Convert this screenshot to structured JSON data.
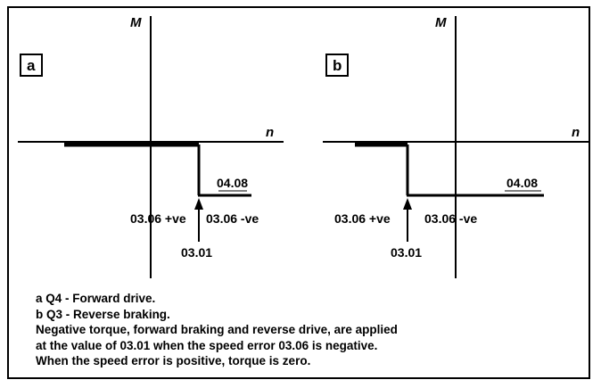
{
  "panels": {
    "a": {
      "label": "a",
      "y_axis": "M",
      "x_axis": "n",
      "level_label": "04.08",
      "pos_label": "03.06 +ve",
      "neg_label": "03.06 -ve",
      "arrow_label": "03.01"
    },
    "b": {
      "label": "b",
      "y_axis": "M",
      "x_axis": "n",
      "level_label": "04.08",
      "pos_label": "03.06 +ve",
      "neg_label": "03.06 -ve",
      "arrow_label": "03.01"
    }
  },
  "caption": {
    "line1": "a  Q4  -  Forward drive.",
    "line2": "b  Q3  -  Reverse braking.",
    "line3": "Negative torque, forward braking and reverse drive, are applied",
    "line4": "at the value of 03.01 when the speed error 03.06 is negative.",
    "line5": "When the speed error is positive, torque is zero."
  }
}
